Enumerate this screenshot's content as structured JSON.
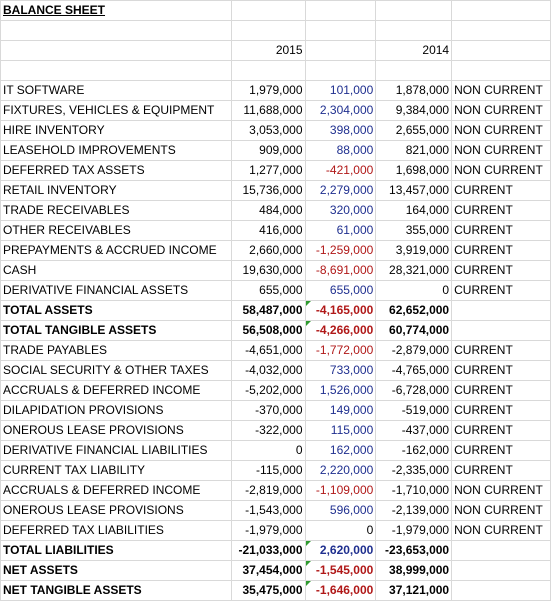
{
  "title": "BALANCE SHEET",
  "years": {
    "current": "2015",
    "prior": "2014"
  },
  "rows": [
    {
      "label": "IT SOFTWARE",
      "y2015": "1,979,000",
      "change": "101,000",
      "y2014": "1,878,000",
      "class": "NON CURRENT"
    },
    {
      "label": "FIXTURES, VEHICLES & EQUIPMENT",
      "y2015": "11,688,000",
      "change": "2,304,000",
      "y2014": "9,384,000",
      "class": "NON CURRENT"
    },
    {
      "label": "HIRE INVENTORY",
      "y2015": "3,053,000",
      "change": "398,000",
      "y2014": "2,655,000",
      "class": "NON CURRENT"
    },
    {
      "label": "LEASEHOLD IMPROVEMENTS",
      "y2015": "909,000",
      "change": "88,000",
      "y2014": "821,000",
      "class": "NON CURRENT"
    },
    {
      "label": "DEFERRED TAX ASSETS",
      "y2015": "1,277,000",
      "change": "-421,000",
      "y2014": "1,698,000",
      "class": "NON CURRENT"
    },
    {
      "label": "RETAIL INVENTORY",
      "y2015": "15,736,000",
      "change": "2,279,000",
      "y2014": "13,457,000",
      "class": "CURRENT"
    },
    {
      "label": "TRADE RECEIVABLES",
      "y2015": "484,000",
      "change": "320,000",
      "y2014": "164,000",
      "class": "CURRENT"
    },
    {
      "label": "OTHER RECEIVABLES",
      "y2015": "416,000",
      "change": "61,000",
      "y2014": "355,000",
      "class": "CURRENT"
    },
    {
      "label": "PREPAYMENTS & ACCRUED INCOME",
      "y2015": "2,660,000",
      "change": "-1,259,000",
      "y2014": "3,919,000",
      "class": "CURRENT"
    },
    {
      "label": "CASH",
      "y2015": "19,630,000",
      "change": "-8,691,000",
      "y2014": "28,321,000",
      "class": "CURRENT"
    },
    {
      "label": "DERIVATIVE FINANCIAL ASSETS",
      "y2015": "655,000",
      "change": "655,000",
      "y2014": "0",
      "class": "CURRENT"
    },
    {
      "label": "TOTAL ASSETS",
      "y2015": "58,487,000",
      "change": "-4,165,000",
      "y2014": "62,652,000",
      "class": "",
      "bold": true,
      "flag": true
    },
    {
      "label": "TOTAL TANGIBLE ASSETS",
      "y2015": "56,508,000",
      "change": "-4,266,000",
      "y2014": "60,774,000",
      "class": "",
      "bold": true,
      "flag": true
    },
    {
      "label": "TRADE PAYABLES",
      "y2015": "-4,651,000",
      "change": "-1,772,000",
      "y2014": "-2,879,000",
      "class": "CURRENT"
    },
    {
      "label": "SOCIAL SECURITY & OTHER TAXES",
      "y2015": "-4,032,000",
      "change": "733,000",
      "y2014": "-4,765,000",
      "class": "CURRENT"
    },
    {
      "label": "ACCRUALS & DEFERRED INCOME",
      "y2015": "-5,202,000",
      "change": "1,526,000",
      "y2014": "-6,728,000",
      "class": "CURRENT"
    },
    {
      "label": "DILAPIDATION PROVISIONS",
      "y2015": "-370,000",
      "change": "149,000",
      "y2014": "-519,000",
      "class": "CURRENT"
    },
    {
      "label": "ONEROUS LEASE PROVISIONS",
      "y2015": "-322,000",
      "change": "115,000",
      "y2014": "-437,000",
      "class": "CURRENT"
    },
    {
      "label": "DERIVATIVE FINANCIAL LIABILITIES",
      "y2015": "0",
      "change": "162,000",
      "y2014": "-162,000",
      "class": "CURRENT"
    },
    {
      "label": "CURRENT TAX LIABILITY",
      "y2015": "-115,000",
      "change": "2,220,000",
      "y2014": "-2,335,000",
      "class": "CURRENT"
    },
    {
      "label": "ACCRUALS & DEFERRED INCOME",
      "y2015": "-2,819,000",
      "change": "-1,109,000",
      "y2014": "-1,710,000",
      "class": "NON CURRENT"
    },
    {
      "label": "ONEROUS LEASE PROVISIONS",
      "y2015": "-1,543,000",
      "change": "596,000",
      "y2014": "-2,139,000",
      "class": "NON CURRENT"
    },
    {
      "label": "DEFERRED TAX LIABILITIES",
      "y2015": "-1,979,000",
      "change": "0",
      "y2014": "-1,979,000",
      "class": "NON CURRENT"
    },
    {
      "label": "TOTAL LIABILITIES",
      "y2015": "-21,033,000",
      "change": "2,620,000",
      "y2014": "-23,653,000",
      "class": "",
      "bold": true,
      "flag": true
    },
    {
      "label": "NET ASSETS",
      "y2015": "37,454,000",
      "change": "-1,545,000",
      "y2014": "38,999,000",
      "class": "",
      "bold": true,
      "flag": true
    },
    {
      "label": "NET TANGIBLE ASSETS",
      "y2015": "35,475,000",
      "change": "-1,646,000",
      "y2014": "37,121,000",
      "class": "",
      "bold": true,
      "flag": true
    }
  ],
  "colors": {
    "positive_change": "#1f2f8f",
    "negative_change": "#b01818",
    "error_flag": "#2e9a2e",
    "gridline": "#d9d9d9"
  }
}
